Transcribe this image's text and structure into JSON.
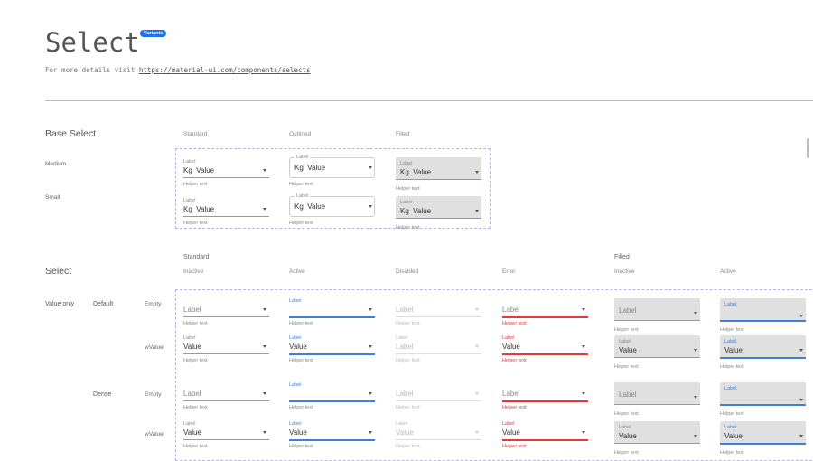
{
  "header": {
    "title": "Select",
    "badge": "Variants",
    "subtitle_prefix": "For more details visit ",
    "link": "https://material-ui.com/components/selects"
  },
  "base": {
    "title": "Base Select",
    "columns": [
      "Standard",
      "Outlined",
      "Filled"
    ],
    "rows": [
      {
        "name": "Medium",
        "fields": [
          {
            "variant": "standard",
            "state": "inactive",
            "label": "Label",
            "prefix": "Kg",
            "value": "Value",
            "helper": "Helper text"
          },
          {
            "variant": "outlined",
            "state": "inactive",
            "label": "Label",
            "prefix": "Kg",
            "value": "Value",
            "helper": "Helper text"
          },
          {
            "variant": "filled",
            "state": "inactive",
            "label": "Label",
            "prefix": "Kg",
            "value": "Value",
            "helper": "Helper text"
          }
        ]
      },
      {
        "name": "Small",
        "fields": [
          {
            "variant": "standard",
            "state": "inactive",
            "label": "Label",
            "prefix": "Kg",
            "value": "Value",
            "helper": "Helper text"
          },
          {
            "variant": "outlined",
            "state": "inactive",
            "label": "Label",
            "prefix": "Kg",
            "value": "Value",
            "helper": "Helper text"
          },
          {
            "variant": "filled",
            "state": "inactive",
            "label": "Label",
            "prefix": "Kg",
            "value": "Value",
            "helper": "Helper text"
          }
        ]
      }
    ]
  },
  "select": {
    "title": "Select",
    "groups": [
      "Standard",
      "Filled"
    ],
    "columns": [
      "Inactive",
      "Active",
      "Disabled",
      "Error",
      "Inactive",
      "Active"
    ],
    "row_groups": [
      "Value only",
      "Default",
      "Dense"
    ],
    "rows": [
      {
        "name": "Empty",
        "fields": [
          {
            "variant": "standard",
            "state": "inactive",
            "label": "",
            "value": "Label",
            "placeholder": true,
            "helper": "Helper text"
          },
          {
            "variant": "standard",
            "state": "active",
            "label": "Label",
            "value": "",
            "helper": "Helper text"
          },
          {
            "variant": "standard",
            "state": "disabled",
            "label": "",
            "value": "Label",
            "placeholder": true,
            "helper": "Helper text"
          },
          {
            "variant": "standard",
            "state": "error",
            "label": "",
            "value": "Label",
            "placeholder": true,
            "helper": "Helper text"
          },
          {
            "variant": "filled",
            "state": "inactive",
            "label": "",
            "value": "Label",
            "placeholder": true,
            "helper": "Helper text",
            "empty": true
          },
          {
            "variant": "filled",
            "state": "active",
            "label": "Label",
            "value": "",
            "helper": "Helper text",
            "empty": true
          }
        ]
      },
      {
        "name": "wValue",
        "fields": [
          {
            "variant": "standard",
            "state": "inactive",
            "label": "Label",
            "value": "Value",
            "helper": "Helper text"
          },
          {
            "variant": "standard",
            "state": "active",
            "label": "Label",
            "value": "Value",
            "helper": "Helper text"
          },
          {
            "variant": "standard",
            "state": "disabled",
            "label": "Label",
            "value": "Label",
            "helper": "Helper text"
          },
          {
            "variant": "standard",
            "state": "error",
            "label": "Label",
            "value": "Value",
            "helper": "Helper text"
          },
          {
            "variant": "filled",
            "state": "inactive",
            "label": "Label",
            "value": "Value",
            "helper": "Helper text"
          },
          {
            "variant": "filled",
            "state": "active",
            "label": "Label",
            "value": "Value",
            "helper": "Helper text"
          }
        ]
      },
      {
        "name": "Empty",
        "fields": [
          {
            "variant": "standard",
            "state": "inactive",
            "label": "",
            "value": "Label",
            "placeholder": true,
            "helper": "Helper text"
          },
          {
            "variant": "standard",
            "state": "active",
            "label": "Label",
            "value": "",
            "helper": "Helper text"
          },
          {
            "variant": "standard",
            "state": "disabled",
            "label": "",
            "value": "Label",
            "placeholder": true,
            "helper": "Helper text"
          },
          {
            "variant": "standard",
            "state": "error",
            "label": "",
            "value": "Label",
            "placeholder": true,
            "helper": "Helper text"
          },
          {
            "variant": "filled",
            "state": "inactive",
            "label": "",
            "value": "Label",
            "placeholder": true,
            "helper": "Helper text",
            "empty": true
          },
          {
            "variant": "filled",
            "state": "active",
            "label": "Label",
            "value": "",
            "helper": "Helper text",
            "empty": true
          }
        ]
      },
      {
        "name": "wValue",
        "fields": [
          {
            "variant": "standard",
            "state": "inactive",
            "label": "Label",
            "value": "Value",
            "helper": "Helper text"
          },
          {
            "variant": "standard",
            "state": "active",
            "label": "Label",
            "value": "Value",
            "helper": "Helper text"
          },
          {
            "variant": "standard",
            "state": "disabled",
            "label": "Label",
            "value": "Value",
            "helper": "Helper text"
          },
          {
            "variant": "standard",
            "state": "error",
            "label": "Label",
            "value": "Value",
            "helper": "Helper text"
          },
          {
            "variant": "filled",
            "state": "inactive",
            "label": "Label",
            "value": "Value",
            "helper": "Helper text"
          },
          {
            "variant": "filled",
            "state": "active",
            "label": "Label",
            "value": "Value",
            "helper": "Helper text"
          }
        ]
      }
    ]
  },
  "colors": {
    "accent": "#3f7fd8",
    "error": "#e53935",
    "badge": "#1a73e8",
    "dashed_border": "#b9b3e6"
  }
}
